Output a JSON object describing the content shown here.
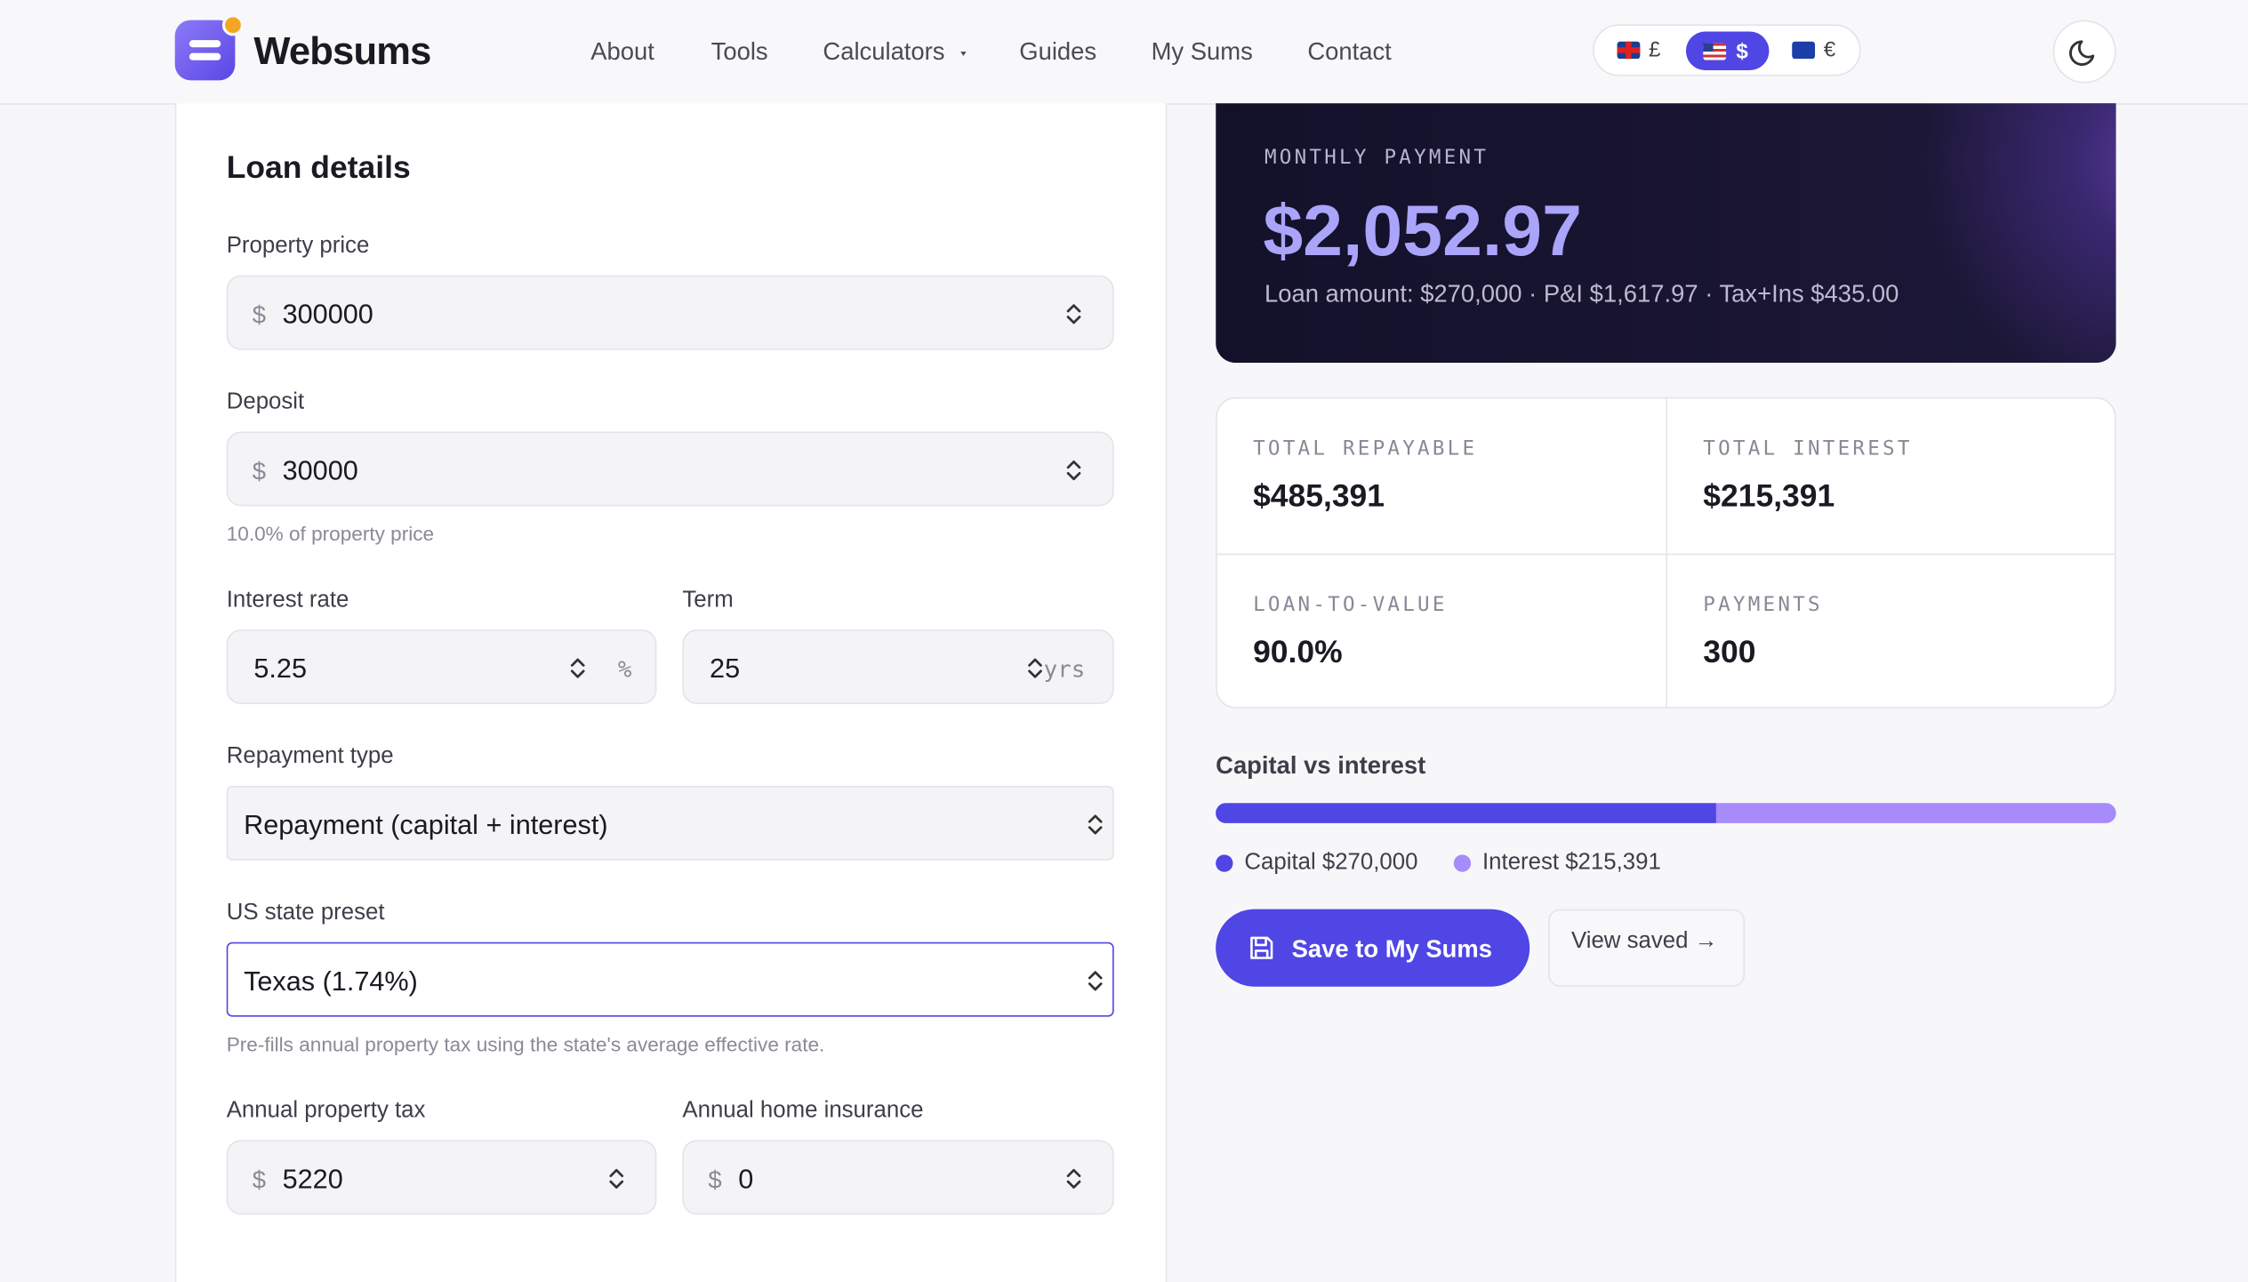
{
  "header": {
    "brand": "Websums",
    "nav": [
      "About",
      "Tools",
      "Calculators",
      "Guides",
      "My Sums",
      "Contact"
    ],
    "currencies": [
      "£",
      "$",
      "€"
    ]
  },
  "form": {
    "title": "Loan details",
    "fields": [
      {
        "label": "Property price",
        "prefix": "$",
        "value": "300000"
      },
      {
        "label": "Deposit",
        "prefix": "$",
        "value": "30000",
        "hint": "10.0% of property price"
      },
      {
        "label": "Interest rate",
        "value": "5.25",
        "suffix": "%"
      },
      {
        "label": "Term",
        "value": "25",
        "suffix": "yrs"
      },
      {
        "label": "Repayment type",
        "value": "Repayment (capital + interest)"
      },
      {
        "label": "US state preset",
        "value": "Texas (1.74%)",
        "hint": "Pre-fills annual property tax using the state's average effective rate."
      },
      {
        "label": "Annual property tax",
        "prefix": "$",
        "value": "5220"
      },
      {
        "label": "Annual home insurance",
        "prefix": "$",
        "value": "0"
      }
    ]
  },
  "results": {
    "hero": {
      "label": "MONTHLY PAYMENT",
      "value": "$2,052.97",
      "sub": "Loan amount: $270,000 · P&I $1,617.97 · Tax+Ins $435.00"
    },
    "stats": [
      {
        "label": "TOTAL REPAYABLE",
        "value": "$485,391"
      },
      {
        "label": "TOTAL INTEREST",
        "value": "$215,391"
      },
      {
        "label": "LOAN-TO-VALUE",
        "value": "90.0%"
      },
      {
        "label": "PAYMENTS",
        "value": "300"
      }
    ],
    "breakdown": {
      "title": "Capital vs interest",
      "legend": [
        "Capital $270,000",
        "Interest $215,391"
      ]
    },
    "buttons": [
      "Save to My Sums",
      "View saved →"
    ]
  }
}
